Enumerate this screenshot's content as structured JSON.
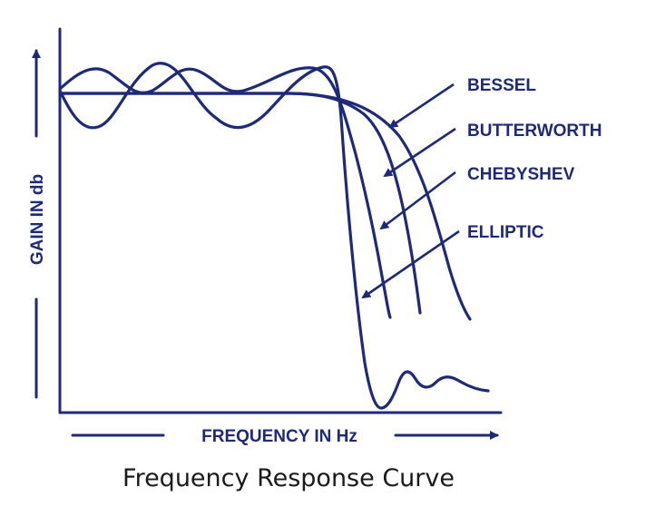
{
  "figure": {
    "x_axis_label": "FREQUENCY IN Hz",
    "y_axis_label": "GAIN IN db",
    "caption": "Frequency Response Curve",
    "ink_color": "#1e2a78",
    "curves": [
      {
        "key": "bessel",
        "label": "BESSEL"
      },
      {
        "key": "butterworth",
        "label": "BUTTERWORTH"
      },
      {
        "key": "chebyshev",
        "label": "CHEBYSHEV"
      },
      {
        "key": "elliptic",
        "label": "ELLIPTIC"
      }
    ]
  }
}
